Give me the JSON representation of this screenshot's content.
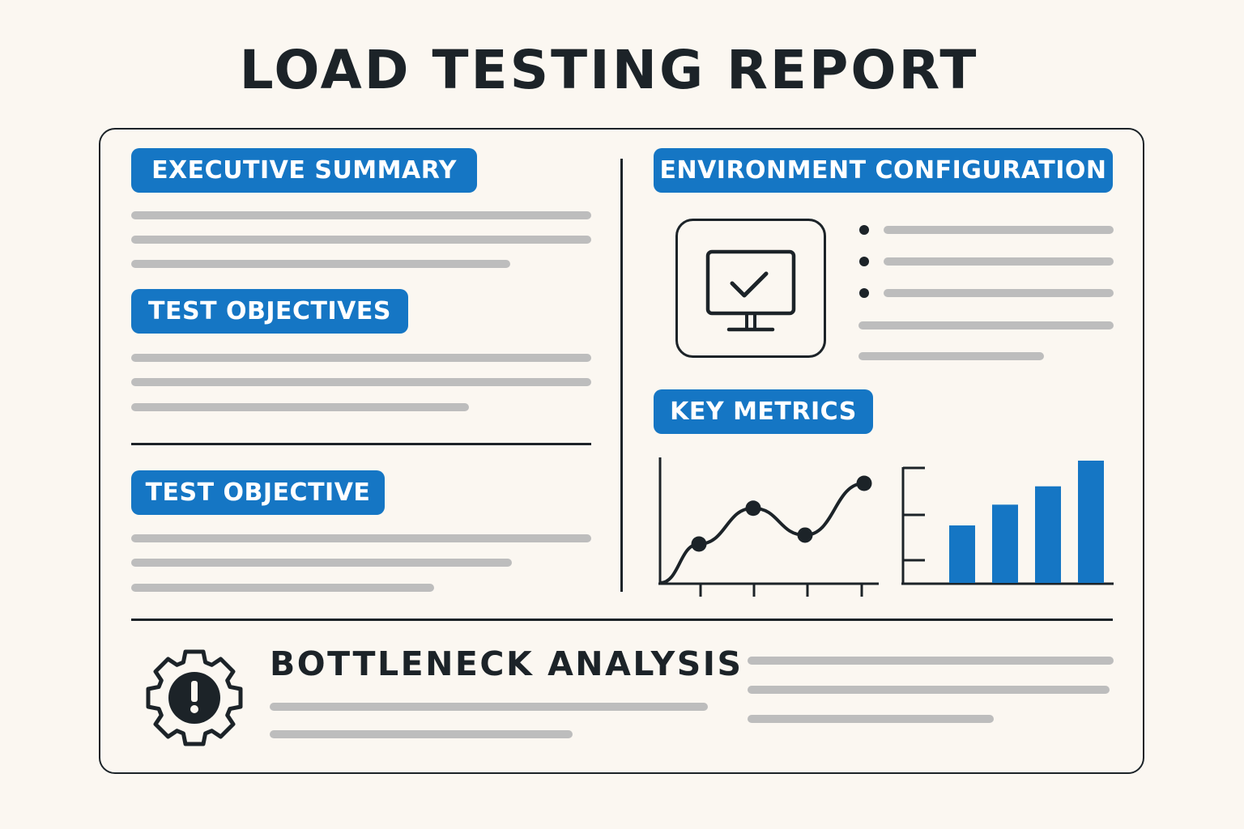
{
  "title": "LOAD TESTING REPORT",
  "sections": {
    "executive_summary": "EXECUTIVE SUMMARY",
    "test_objectives": "TEST OBJECTIVES",
    "test_objective": "TEST OBJECTIVE",
    "environment_configuration": "ENVIRONMENT CONFIGURATION",
    "key_metrics": "KEY METRICS",
    "bottleneck_analysis": "BOTTLENECK ANALYSIS"
  },
  "colors": {
    "accent": "#1576c4",
    "ink": "#1c2328",
    "placeholder_line": "#bdbdbd",
    "background": "#fbf7f1"
  },
  "icons": {
    "environment": "monitor-check-icon",
    "bottleneck": "gear-exclamation-icon"
  },
  "key_metrics": {
    "line_chart_relative_values": [
      0,
      39,
      75,
      48,
      100
    ],
    "bar_chart_relative_values": [
      47,
      64,
      79,
      100
    ]
  }
}
